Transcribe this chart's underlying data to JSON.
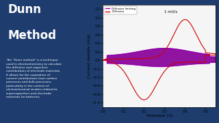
{
  "ylabel": "Current density (A/g)",
  "xlabel": "Potential (V)",
  "xlim": [
    0.0,
    0.55
  ],
  "ylim": [
    -1.1,
    1.3
  ],
  "yticks": [
    -1.0,
    -0.8,
    -0.6,
    -0.4,
    -0.2,
    0.0,
    0.2,
    0.4,
    0.6,
    0.8,
    1.0,
    1.2
  ],
  "xticks": [
    0.0,
    0.1,
    0.2,
    0.3,
    0.4,
    0.5
  ],
  "legend_labels": [
    "Diffusion limiting",
    "Diffusion"
  ],
  "legend_colors": [
    "#9900bb",
    "#cc0000"
  ],
  "annotation": "1 mV/s",
  "bg_left": "#1e3d6e",
  "title_line1": "Dunn",
  "title_line2": "Method",
  "body_text": "The “Dunn method” is a technique\nused in electrochemistry to calculate\nthe diffusive and capacitive\ncontributions of electrode materials.\nIt allows for the separation of\ncurrent contributions from surface\nprocesses and bulk processes,\nparticularly in the context of\nelectrochemical studies related to\nsupercapacitors and electrode\nmaterials for batteries.",
  "diffusion_color": "#cc0000",
  "capacitive_color": "#9900bb",
  "fill_color": "#880099",
  "chart_bg": "#f5f5f5"
}
